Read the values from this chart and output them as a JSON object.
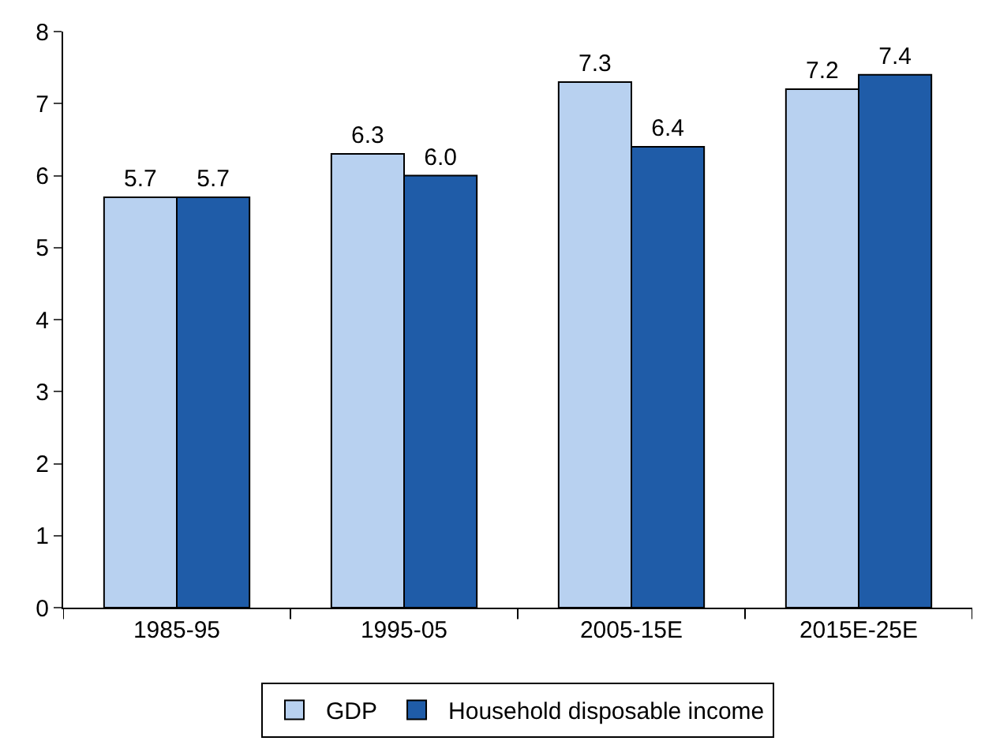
{
  "chart_data": {
    "type": "bar",
    "categories": [
      "1985-95",
      "1995-05",
      "2005-15E",
      "2015E-25E"
    ],
    "series": [
      {
        "name": "GDP",
        "color": "#b8d1f0",
        "values": [
          5.7,
          6.3,
          7.3,
          7.2
        ],
        "value_labels": [
          "5.7",
          "6.3",
          "7.3",
          "7.2"
        ]
      },
      {
        "name": "Household disposable income",
        "color": "#1f5ca8",
        "values": [
          5.7,
          6.0,
          6.4,
          7.4
        ],
        "value_labels": [
          "5.7",
          "6.0",
          "6.4",
          "7.4"
        ]
      }
    ],
    "ylim": [
      0,
      8
    ],
    "yticks": [
      0,
      1,
      2,
      3,
      4,
      5,
      6,
      7,
      8
    ],
    "legend": "bottom"
  }
}
